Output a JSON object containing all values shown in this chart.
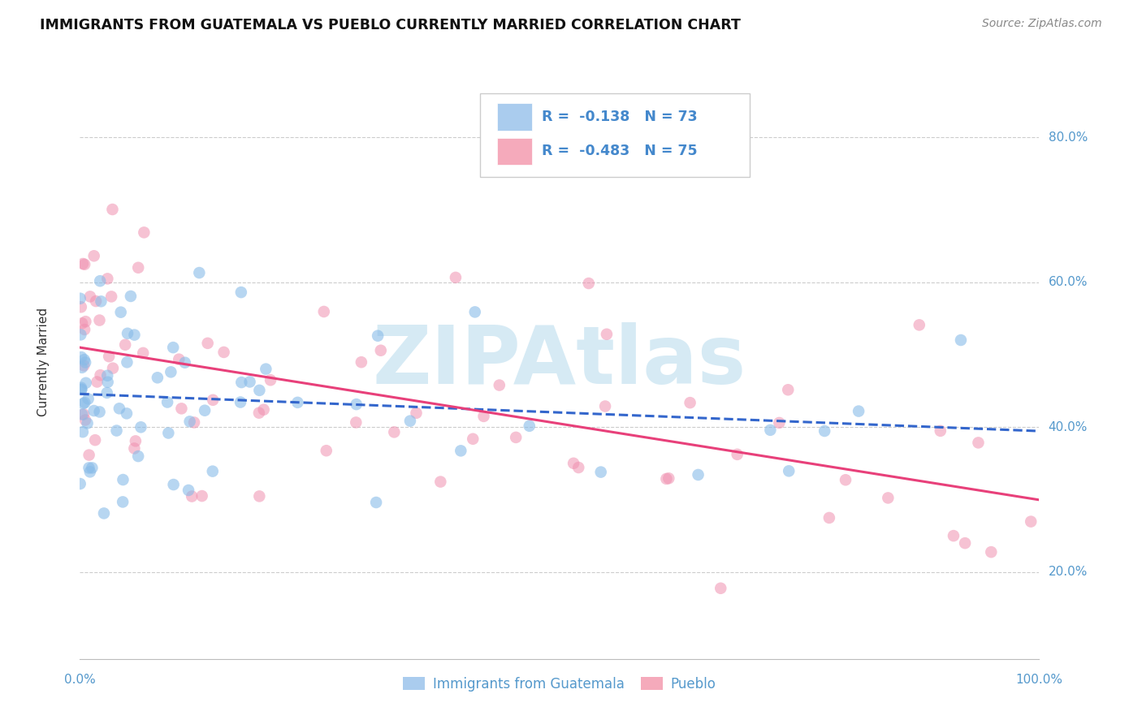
{
  "title": "IMMIGRANTS FROM GUATEMALA VS PUEBLO CURRENTLY MARRIED CORRELATION CHART",
  "source": "Source: ZipAtlas.com",
  "ylabel": "Currently Married",
  "legend_labels": [
    "Immigrants from Guatemala",
    "Pueblo"
  ],
  "R_blue": -0.138,
  "N_blue": 73,
  "R_pink": -0.483,
  "N_pink": 75,
  "blue_color": "#88BBE8",
  "pink_color": "#F090B0",
  "blue_line_color": "#3366CC",
  "pink_line_color": "#E8407A",
  "legend_box_blue": "#AACCEE",
  "legend_box_pink": "#F5AABB",
  "title_fontsize": 12.5,
  "source_fontsize": 10,
  "tick_label_color": "#5599CC",
  "watermark_text": "ZIPAtlas",
  "watermark_color": "#BBDDEE",
  "watermark_alpha": 0.6,
  "watermark_fontsize": 72,
  "ytick_labels": [
    "20.0%",
    "40.0%",
    "60.0%",
    "80.0%"
  ],
  "ytick_values": [
    0.2,
    0.4,
    0.6,
    0.8
  ],
  "xlim": [
    0.0,
    1.0
  ],
  "ylim": [
    0.08,
    0.9
  ],
  "grid_color": "#CCCCCC",
  "legend_text_color": "#4488CC",
  "bg_color": "#FFFFFF"
}
